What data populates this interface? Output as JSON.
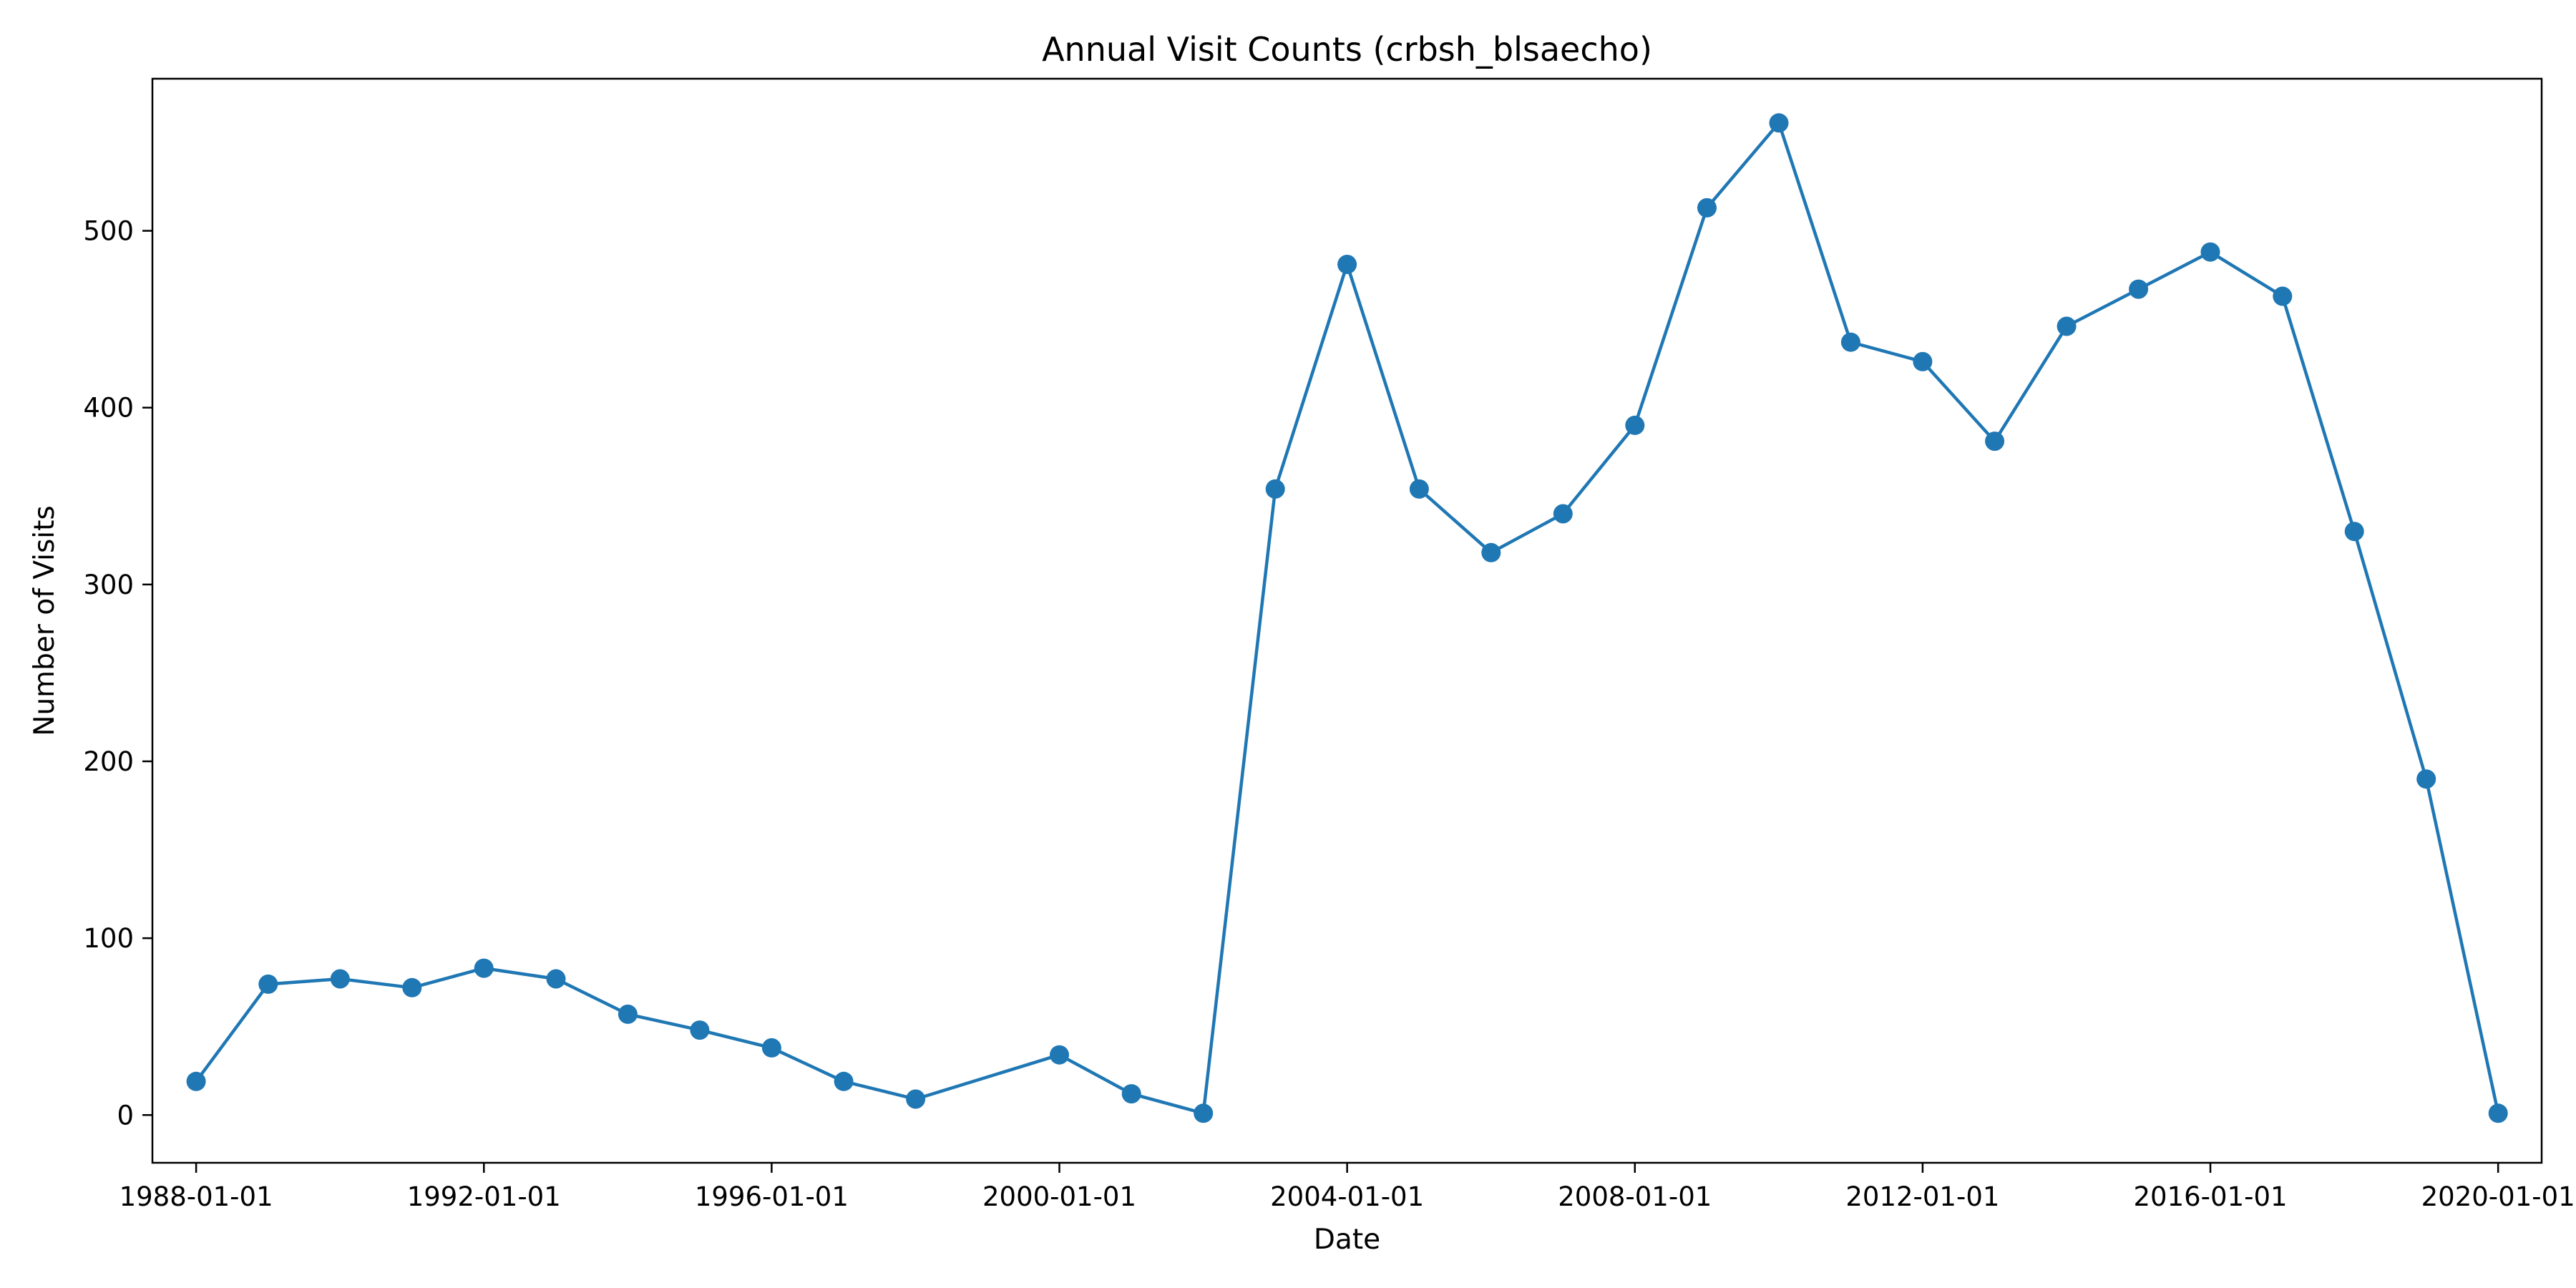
{
  "chart_data": {
    "type": "line",
    "title": "Annual Visit Counts (crbsh_blsaecho)",
    "xlabel": "Date",
    "ylabel": "Number of Visits",
    "x_ticks": [
      "1988-01-01",
      "1992-01-01",
      "1996-01-01",
      "2000-01-01",
      "2004-01-01",
      "2008-01-01",
      "2012-01-01",
      "2016-01-01",
      "2020-01-01"
    ],
    "y_ticks": [
      0,
      100,
      200,
      300,
      400,
      500
    ],
    "xlim": [
      "1987-05-24",
      "2020-08-09"
    ],
    "ylim": [
      -27,
      586
    ],
    "grid": false,
    "legend": "none",
    "series": [
      {
        "color": "#1f77b4",
        "marker": "circle",
        "x": [
          "1988-01-01",
          "1989-01-01",
          "1990-01-01",
          "1991-01-01",
          "1992-01-01",
          "1993-01-01",
          "1994-01-01",
          "1995-01-01",
          "1996-01-01",
          "1997-01-01",
          "1998-01-01",
          "2000-01-01",
          "2001-01-01",
          "2002-01-01",
          "2003-01-01",
          "2004-01-01",
          "2005-01-01",
          "2006-01-01",
          "2007-01-01",
          "2008-01-01",
          "2009-01-01",
          "2010-01-01",
          "2011-01-01",
          "2012-01-01",
          "2013-01-01",
          "2014-01-01",
          "2015-01-01",
          "2016-01-01",
          "2017-01-01",
          "2018-01-01",
          "2019-01-01",
          "2020-01-01"
        ],
        "y": [
          19,
          74,
          77,
          72,
          83,
          77,
          57,
          48,
          38,
          19,
          9,
          34,
          12,
          1,
          354,
          481,
          354,
          318,
          340,
          390,
          513,
          561,
          437,
          426,
          381,
          446,
          467,
          488,
          463,
          330,
          190,
          1
        ]
      }
    ]
  }
}
